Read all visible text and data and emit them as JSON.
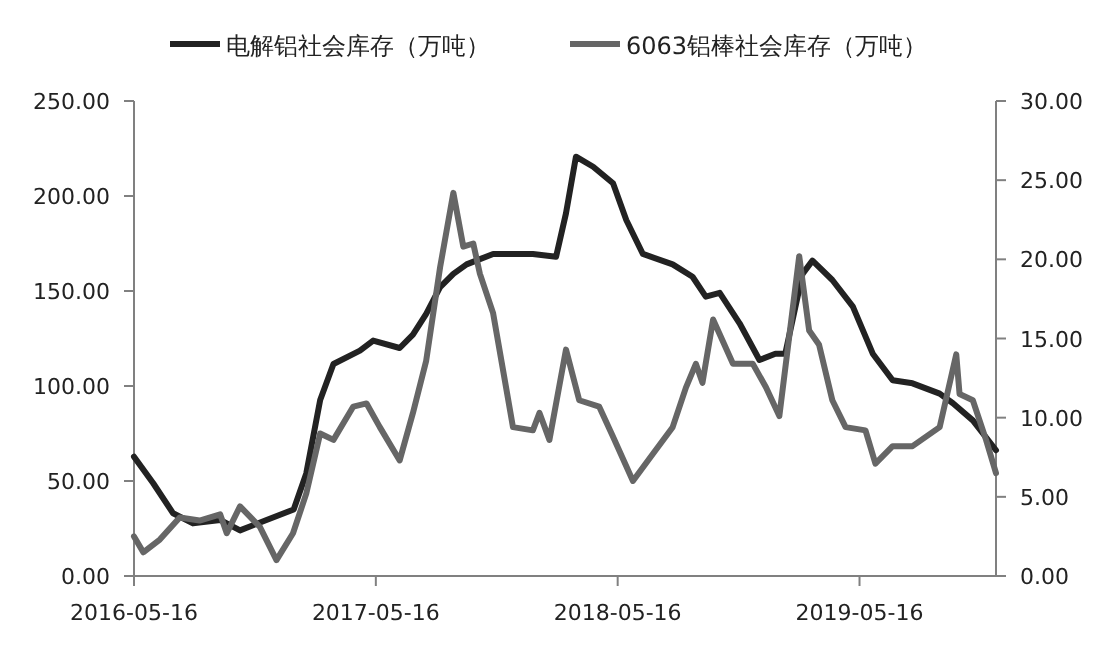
{
  "chart_data": {
    "type": "line",
    "legend": "top",
    "xlim": [
      "2016-05-16",
      "2019-12-08"
    ],
    "xticks": [
      "2016-05-16",
      "2017-05-16",
      "2018-05-16",
      "2019-05-16"
    ],
    "ylim": [
      0,
      250
    ],
    "yticks": [
      {
        "value": 0,
        "label": "0.00"
      },
      {
        "value": 50,
        "label": "50.00"
      },
      {
        "value": 100,
        "label": "100.00"
      },
      {
        "value": 150,
        "label": "150.00"
      },
      {
        "value": 200,
        "label": "200.00"
      },
      {
        "value": 250,
        "label": "250.00"
      }
    ],
    "y2lim": [
      0,
      30
    ],
    "y2ticks": [
      {
        "value": 0,
        "label": "0.00"
      },
      {
        "value": 5,
        "label": "5.00"
      },
      {
        "value": 10,
        "label": "10.00"
      },
      {
        "value": 15,
        "label": "15.00"
      },
      {
        "value": 20,
        "label": "20.00"
      },
      {
        "value": 25,
        "label": "25.00"
      },
      {
        "value": 30,
        "label": "30.00"
      }
    ],
    "series": [
      {
        "name": "电解铝社会库存（万吨）",
        "color": "#222222",
        "x": [
          "2016-05-16",
          "2016-06-14",
          "2016-07-14",
          "2016-08-13",
          "2016-09-23",
          "2016-10-23",
          "2016-12-02",
          "2017-01-12",
          "2017-01-31",
          "2017-02-21",
          "2017-03-13",
          "2017-04-22",
          "2017-05-12",
          "2017-06-21",
          "2017-07-11",
          "2017-07-31",
          "2017-08-21",
          "2017-09-10",
          "2017-09-30",
          "2017-11-09",
          "2018-01-08",
          "2018-02-12",
          "2018-02-27",
          "2018-03-14",
          "2018-04-09",
          "2018-05-09",
          "2018-05-29",
          "2018-06-23",
          "2018-08-07",
          "2018-09-06",
          "2018-09-26",
          "2018-10-17",
          "2018-11-16",
          "2018-12-16",
          "2019-01-09",
          "2019-01-24",
          "2019-02-19",
          "2019-03-06",
          "2019-04-05",
          "2019-05-06",
          "2019-06-05",
          "2019-07-05",
          "2019-08-04",
          "2019-09-14",
          "2019-10-04",
          "2019-11-03",
          "2019-12-08"
        ],
        "values": [
          62.8,
          48.8,
          33,
          27.7,
          29.5,
          24,
          29.5,
          35,
          54,
          92.6,
          111.6,
          118.6,
          123.9,
          120,
          127,
          138,
          152,
          159,
          164,
          169.5,
          169.5,
          168,
          190.9,
          220.7,
          215.4,
          206.7,
          187.4,
          169.5,
          164,
          157.5,
          147,
          149,
          133,
          113.7,
          117,
          117,
          159,
          166,
          155.8,
          141.8,
          117,
          103,
          101.4,
          96,
          90.9,
          81.9,
          66.2
        ]
      },
      {
        "name": "6063铝棒社会库存（万吨）",
        "color": "#666666",
        "axis": "y2",
        "x": [
          "2016-05-16",
          "2016-05-30",
          "2016-06-24",
          "2016-07-24",
          "2016-08-23",
          "2016-09-23",
          "2016-10-03",
          "2016-10-23",
          "2016-11-22",
          "2016-12-17",
          "2017-01-11",
          "2017-01-31",
          "2017-02-21",
          "2017-03-13",
          "2017-04-12",
          "2017-05-02",
          "2017-05-22",
          "2017-06-21",
          "2017-07-11",
          "2017-07-31",
          "2017-08-21",
          "2017-09-10",
          "2017-09-25",
          "2017-10-10",
          "2017-10-20",
          "2017-11-09",
          "2017-12-09",
          "2018-01-08",
          "2018-01-18",
          "2018-02-02",
          "2018-02-27",
          "2018-03-19",
          "2018-04-18",
          "2018-05-09",
          "2018-06-08",
          "2018-07-08",
          "2018-08-07",
          "2018-08-27",
          "2018-09-11",
          "2018-09-21",
          "2018-10-07",
          "2018-11-06",
          "2018-12-06",
          "2018-12-26",
          "2019-01-15",
          "2019-02-14",
          "2019-03-01",
          "2019-03-16",
          "2019-04-05",
          "2019-04-25",
          "2019-05-25",
          "2019-06-09",
          "2019-07-05",
          "2019-08-04",
          "2019-09-14",
          "2019-10-09",
          "2019-10-14",
          "2019-11-03",
          "2019-11-23",
          "2019-12-08"
        ],
        "values": [
          2.5,
          1.5,
          2.3,
          3.7,
          3.5,
          3.9,
          2.7,
          4.4,
          3.1,
          1.0,
          2.7,
          5.2,
          9.0,
          8.6,
          10.7,
          10.9,
          9.4,
          7.3,
          10.3,
          13.6,
          19.5,
          24.2,
          20.8,
          21.0,
          19.1,
          16.6,
          9.4,
          9.2,
          10.3,
          8.6,
          14.3,
          11.1,
          10.7,
          8.8,
          6.0,
          7.7,
          9.4,
          11.9,
          13.4,
          12.2,
          16.2,
          13.4,
          13.4,
          11.9,
          10.1,
          20.2,
          15.5,
          14.6,
          11.1,
          9.4,
          9.2,
          7.1,
          8.2,
          8.2,
          9.4,
          14.0,
          11.5,
          11.1,
          8.6,
          6.5
        ]
      }
    ]
  }
}
